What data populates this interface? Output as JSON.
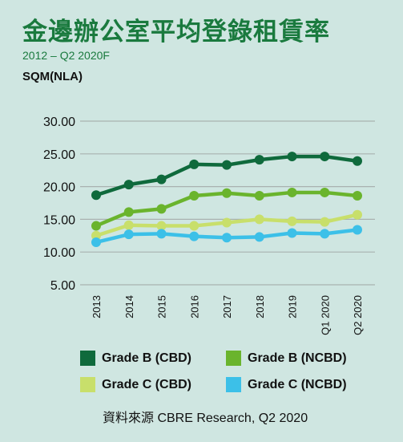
{
  "header": {
    "title": "金邊辦公室平均登錄租賃率",
    "subtitle": "2012 – Q2 2020F",
    "unit": "SQM(NLA)"
  },
  "source": "資料來源  CBRE Research, Q2 2020",
  "colors": {
    "background": "#cfe6e1",
    "title": "#1a7a3e",
    "gridline": "#a9b2b0"
  },
  "chart_data": {
    "type": "line",
    "categories": [
      "2013",
      "2014",
      "2015",
      "2016",
      "2017",
      "2018",
      "2019",
      "Q1 2020",
      "Q2 2020"
    ],
    "ylim": [
      5,
      30
    ],
    "yticks": [
      "5.00",
      "10.00",
      "15.00",
      "20.00",
      "25.00",
      "30.00"
    ],
    "grid": true,
    "legend_position": "bottom",
    "series": [
      {
        "name": "Grade B (CBD)",
        "color": "#0f6a3c",
        "values": [
          18.7,
          20.3,
          21.1,
          23.4,
          23.3,
          24.1,
          24.6,
          24.6,
          23.9
        ]
      },
      {
        "name": "Grade B (NCBD)",
        "color": "#6ab42d",
        "values": [
          14.0,
          16.1,
          16.6,
          18.6,
          19.0,
          18.6,
          19.1,
          19.1,
          18.6
        ]
      },
      {
        "name": "Grade C (CBD)",
        "color": "#c8df6b",
        "values": [
          12.5,
          14.1,
          14.0,
          14.0,
          14.5,
          15.0,
          14.7,
          14.6,
          15.7
        ]
      },
      {
        "name": "Grade C (NCBD)",
        "color": "#3cc0e8",
        "values": [
          11.5,
          12.7,
          12.8,
          12.4,
          12.2,
          12.3,
          12.9,
          12.8,
          13.4
        ]
      }
    ]
  }
}
